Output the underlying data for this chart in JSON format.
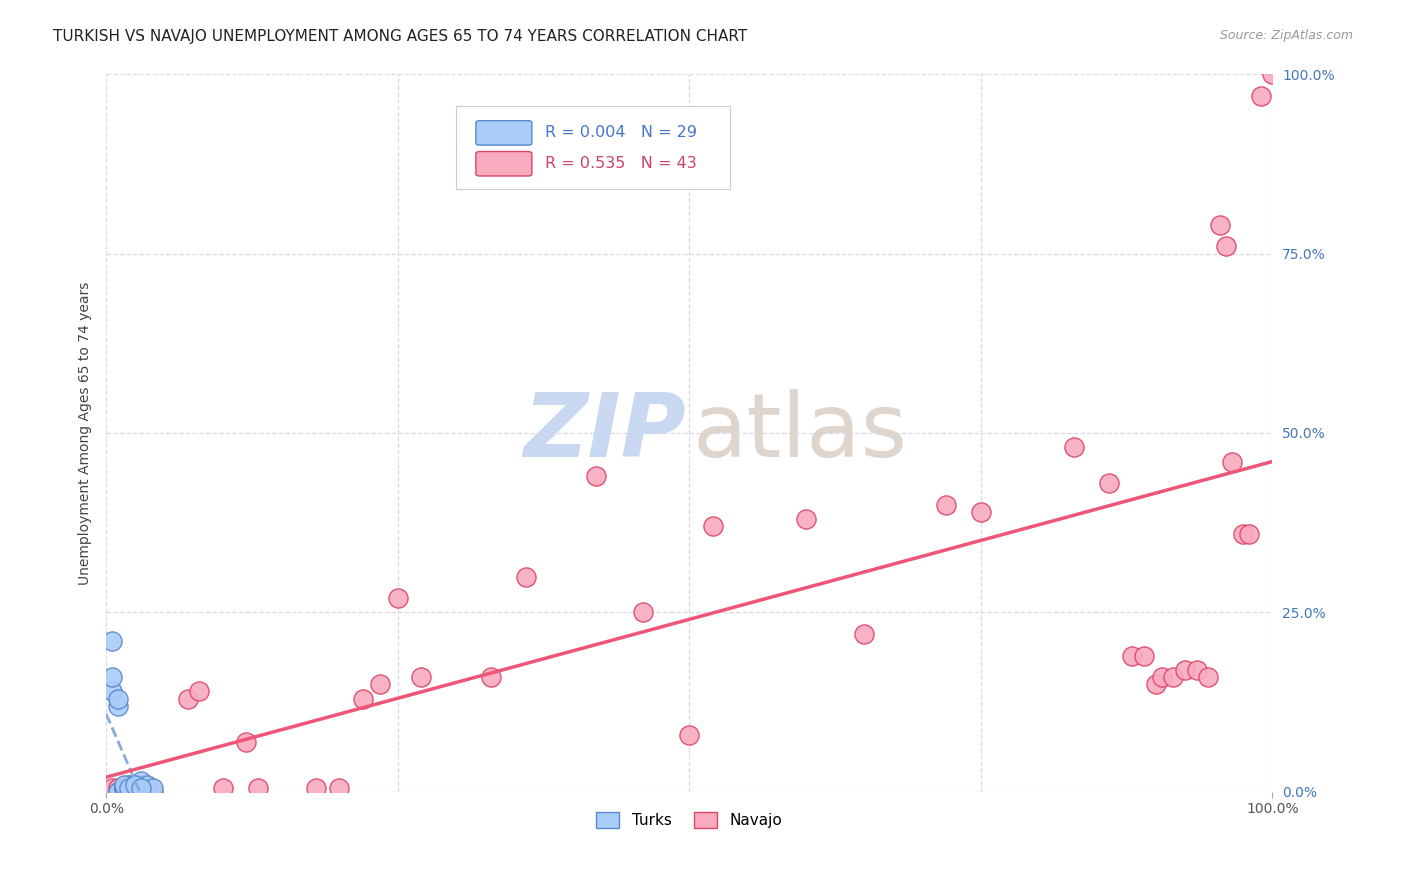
{
  "title": "TURKISH VS NAVAJO UNEMPLOYMENT AMONG AGES 65 TO 74 YEARS CORRELATION CHART",
  "source": "Source: ZipAtlas.com",
  "ylabel": "Unemployment Among Ages 65 to 74 years",
  "xlim": [
    0,
    1
  ],
  "ylim": [
    0,
    1
  ],
  "turks_x": [
    0.01,
    0.01,
    0.015,
    0.015,
    0.015,
    0.02,
    0.02,
    0.02,
    0.02,
    0.02,
    0.025,
    0.025,
    0.025,
    0.03,
    0.03,
    0.03,
    0.03,
    0.035,
    0.035,
    0.04,
    0.005,
    0.005,
    0.005,
    0.01,
    0.01,
    0.015,
    0.02,
    0.025,
    0.03
  ],
  "turks_y": [
    0.0,
    0.0,
    0.005,
    0.005,
    0.005,
    0.0,
    0.005,
    0.005,
    0.01,
    0.01,
    0.005,
    0.01,
    0.01,
    0.005,
    0.005,
    0.01,
    0.015,
    0.005,
    0.01,
    0.005,
    0.14,
    0.16,
    0.21,
    0.12,
    0.13,
    0.01,
    0.005,
    0.01,
    0.005
  ],
  "navajo_x": [
    0.005,
    0.01,
    0.02,
    0.035,
    0.04,
    0.07,
    0.08,
    0.1,
    0.12,
    0.13,
    0.18,
    0.2,
    0.22,
    0.235,
    0.25,
    0.27,
    0.33,
    0.36,
    0.42,
    0.46,
    0.5,
    0.52,
    0.6,
    0.65,
    0.72,
    0.75,
    0.83,
    0.86,
    0.88,
    0.89,
    0.9,
    0.905,
    0.915,
    0.925,
    0.935,
    0.945,
    0.955,
    0.96,
    0.965,
    0.975,
    0.98,
    0.99,
    1.0
  ],
  "navajo_y": [
    0.005,
    0.005,
    0.0,
    0.005,
    0.0,
    0.13,
    0.14,
    0.005,
    0.07,
    0.005,
    0.005,
    0.005,
    0.13,
    0.15,
    0.27,
    0.16,
    0.16,
    0.3,
    0.44,
    0.25,
    0.08,
    0.37,
    0.38,
    0.22,
    0.4,
    0.39,
    0.48,
    0.43,
    0.19,
    0.19,
    0.15,
    0.16,
    0.16,
    0.17,
    0.17,
    0.16,
    0.79,
    0.76,
    0.46,
    0.36,
    0.36,
    0.97,
    1.0
  ],
  "turks_color": "#aaccf8",
  "navajo_color": "#f8aabf",
  "turks_edge_color": "#5588cc",
  "navajo_edge_color": "#dd4466",
  "turks_R": 0.004,
  "turks_N": 29,
  "navajo_R": 0.535,
  "navajo_N": 43,
  "trend_turks_color": "#88aadd",
  "trend_navajo_color": "#ee5577",
  "background_color": "#ffffff",
  "grid_color": "#ddd8e8",
  "watermark_ZIP_color": "#c8d8f0",
  "watermark_atlas_color": "#ddd5ce",
  "legend_turks_label": "Turks",
  "legend_navajo_label": "Navajo"
}
